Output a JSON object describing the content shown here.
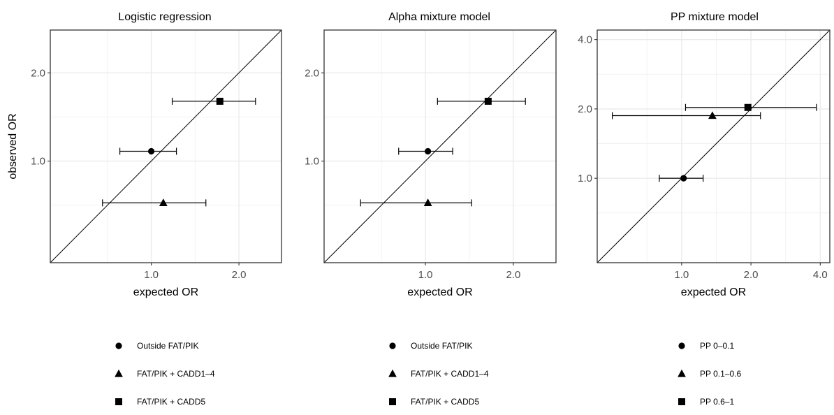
{
  "chart_data": [
    {
      "type": "scatter",
      "title": "Logistic regression",
      "xlabel": "expected OR",
      "ylabel": "observed OR",
      "scale": "log",
      "xlim": [
        0.45,
        2.8
      ],
      "ylim": [
        0.45,
        2.8
      ],
      "xticks": [
        {
          "value": 1.0,
          "label": "1.0"
        },
        {
          "value": 2.0,
          "label": "2.0"
        }
      ],
      "yticks": [
        {
          "value": 1.0,
          "label": "1.0"
        },
        {
          "value": 2.0,
          "label": "2.0"
        }
      ],
      "identity_line": true,
      "grid": true,
      "points": [
        {
          "label": "Outside FAT/PIK",
          "shape": "circle",
          "x": 1.0,
          "y": 1.08,
          "xerr": [
            0.78,
            1.22
          ]
        },
        {
          "label": "FAT/PIK + CADD1–4",
          "shape": "triangle",
          "x": 1.1,
          "y": 0.72,
          "xerr": [
            0.68,
            1.54
          ]
        },
        {
          "label": "FAT/PIK + CADD5",
          "shape": "square",
          "x": 1.72,
          "y": 1.6,
          "xerr": [
            1.18,
            2.28
          ]
        }
      ],
      "legend": [
        {
          "shape": "circle",
          "label": "Outside FAT/PIK"
        },
        {
          "shape": "triangle",
          "label": "FAT/PIK + CADD1–4"
        },
        {
          "shape": "square",
          "label": "FAT/PIK + CADD5"
        }
      ]
    },
    {
      "type": "scatter",
      "title": "Alpha mixture model",
      "xlabel": "expected OR",
      "ylabel": "",
      "scale": "log",
      "xlim": [
        0.45,
        2.8
      ],
      "ylim": [
        0.45,
        2.8
      ],
      "xticks": [
        {
          "value": 1.0,
          "label": "1.0"
        },
        {
          "value": 2.0,
          "label": "2.0"
        }
      ],
      "yticks": [
        {
          "value": 1.0,
          "label": "1.0"
        },
        {
          "value": 2.0,
          "label": "2.0"
        }
      ],
      "identity_line": true,
      "grid": true,
      "points": [
        {
          "label": "Outside FAT/PIK",
          "shape": "circle",
          "x": 1.02,
          "y": 1.08,
          "xerr": [
            0.81,
            1.24
          ]
        },
        {
          "label": "FAT/PIK + CADD1–4",
          "shape": "triangle",
          "x": 1.02,
          "y": 0.72,
          "xerr": [
            0.6,
            1.44
          ]
        },
        {
          "label": "FAT/PIK + CADD5",
          "shape": "square",
          "x": 1.64,
          "y": 1.6,
          "xerr": [
            1.1,
            2.2
          ]
        }
      ],
      "legend": [
        {
          "shape": "circle",
          "label": "Outside FAT/PIK"
        },
        {
          "shape": "triangle",
          "label": "FAT/PIK + CADD1–4"
        },
        {
          "shape": "square",
          "label": "FAT/PIK + CADD5"
        }
      ]
    },
    {
      "type": "scatter",
      "title": "PP mixture model",
      "xlabel": "expected OR",
      "ylabel": "",
      "scale": "log",
      "xlim": [
        0.43,
        4.4
      ],
      "ylim": [
        0.43,
        4.4
      ],
      "xticks": [
        {
          "value": 1.0,
          "label": "1.0"
        },
        {
          "value": 2.0,
          "label": "2.0"
        },
        {
          "value": 4.0,
          "label": "4.0"
        }
      ],
      "yticks": [
        {
          "value": 1.0,
          "label": "1.0"
        },
        {
          "value": 2.0,
          "label": "2.0"
        },
        {
          "value": 4.0,
          "label": "4.0"
        }
      ],
      "identity_line": true,
      "grid": true,
      "points": [
        {
          "label": "PP 0–0.1",
          "shape": "circle",
          "x": 1.02,
          "y": 1.0,
          "xerr": [
            0.8,
            1.24
          ]
        },
        {
          "label": "PP 0.1–0.6",
          "shape": "triangle",
          "x": 1.36,
          "y": 1.87,
          "xerr": [
            0.5,
            2.2
          ]
        },
        {
          "label": "PP 0.6–1",
          "shape": "square",
          "x": 1.94,
          "y": 2.03,
          "xerr": [
            1.04,
            3.85
          ]
        }
      ],
      "legend": [
        {
          "shape": "circle",
          "label": "PP 0–0.1"
        },
        {
          "shape": "triangle",
          "label": "PP 0.1–0.6"
        },
        {
          "shape": "square",
          "label": "PP 0.6–1"
        }
      ]
    }
  ]
}
